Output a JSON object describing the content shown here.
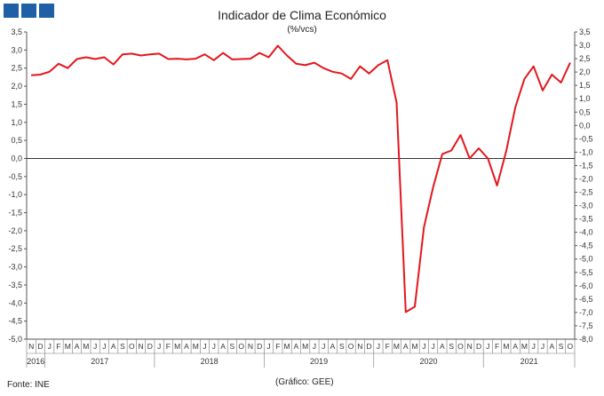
{
  "header": {
    "logo_boxes": 3,
    "logo_color": "#1f5fa5"
  },
  "chart_data": {
    "type": "line",
    "title": "Indicador de Clima Económico",
    "subtitle": "(%/vcs)",
    "line_color": "#e3171d",
    "ylim": [
      -5.0,
      3.5
    ],
    "ylim_right": [
      -8.0,
      3.5
    ],
    "y_ticks_left": [
      "3,5",
      "3,0",
      "2,5",
      "2,0",
      "1,5",
      "1,0",
      "0,5",
      "0,0",
      "-0,5",
      "-1,0",
      "-1,5",
      "-2,0",
      "-2,5",
      "-3,0",
      "-3,5",
      "-4,0",
      "-4,5",
      "-5,0"
    ],
    "y_ticks_right": [
      "3,5",
      "3,0",
      "2,5",
      "2,0",
      "1,5",
      "1,0",
      "0,5",
      "0,0",
      "-0,5",
      "-1,0",
      "-1,5",
      "-2,0",
      "-2,5",
      "-3,0",
      "-3,5",
      "-4,0",
      "-4,5",
      "-5,0",
      "-5,5",
      "-6,0",
      "-6,5",
      "-7,0",
      "-7,5",
      "-8,0"
    ],
    "x_month_labels": [
      "N",
      "D",
      "J",
      "F",
      "M",
      "A",
      "M",
      "J",
      "J",
      "A",
      "S",
      "O",
      "N",
      "D",
      "J",
      "F",
      "M",
      "A",
      "M",
      "J",
      "J",
      "A",
      "S",
      "O",
      "N",
      "D",
      "J",
      "F",
      "M",
      "A",
      "M",
      "J",
      "J",
      "A",
      "S",
      "O",
      "N",
      "D",
      "J",
      "F",
      "M",
      "A",
      "M",
      "J",
      "J",
      "A",
      "S",
      "O",
      "N",
      "D",
      "J",
      "F",
      "M",
      "A",
      "M",
      "J",
      "J",
      "A",
      "S",
      "O"
    ],
    "year_labels": [
      {
        "label": "2016",
        "start": 0,
        "end": 2
      },
      {
        "label": "2017",
        "start": 2,
        "end": 14
      },
      {
        "label": "2018",
        "start": 14,
        "end": 26
      },
      {
        "label": "2019",
        "start": 26,
        "end": 38
      },
      {
        "label": "2020",
        "start": 38,
        "end": 50
      },
      {
        "label": "2021",
        "start": 50,
        "end": 60
      }
    ],
    "grid": false,
    "values": [
      2.3,
      2.32,
      2.4,
      2.62,
      2.5,
      2.75,
      2.8,
      2.75,
      2.8,
      2.6,
      2.88,
      2.9,
      2.85,
      2.88,
      2.9,
      2.75,
      2.76,
      2.74,
      2.76,
      2.88,
      2.72,
      2.92,
      2.74,
      2.75,
      2.76,
      2.92,
      2.8,
      3.12,
      2.85,
      2.62,
      2.58,
      2.65,
      2.5,
      2.4,
      2.35,
      2.2,
      2.55,
      2.35,
      2.58,
      2.72,
      1.55,
      -4.25,
      -4.1,
      -1.9,
      -0.8,
      0.12,
      0.22,
      0.65,
      0.0,
      0.28,
      0.0,
      -0.75,
      0.2,
      1.42,
      2.2,
      2.55,
      1.88,
      2.32,
      2.1,
      2.65
    ]
  },
  "footer": {
    "source": "Fonte: INE",
    "credit": "(Gráfico: GEE)"
  }
}
